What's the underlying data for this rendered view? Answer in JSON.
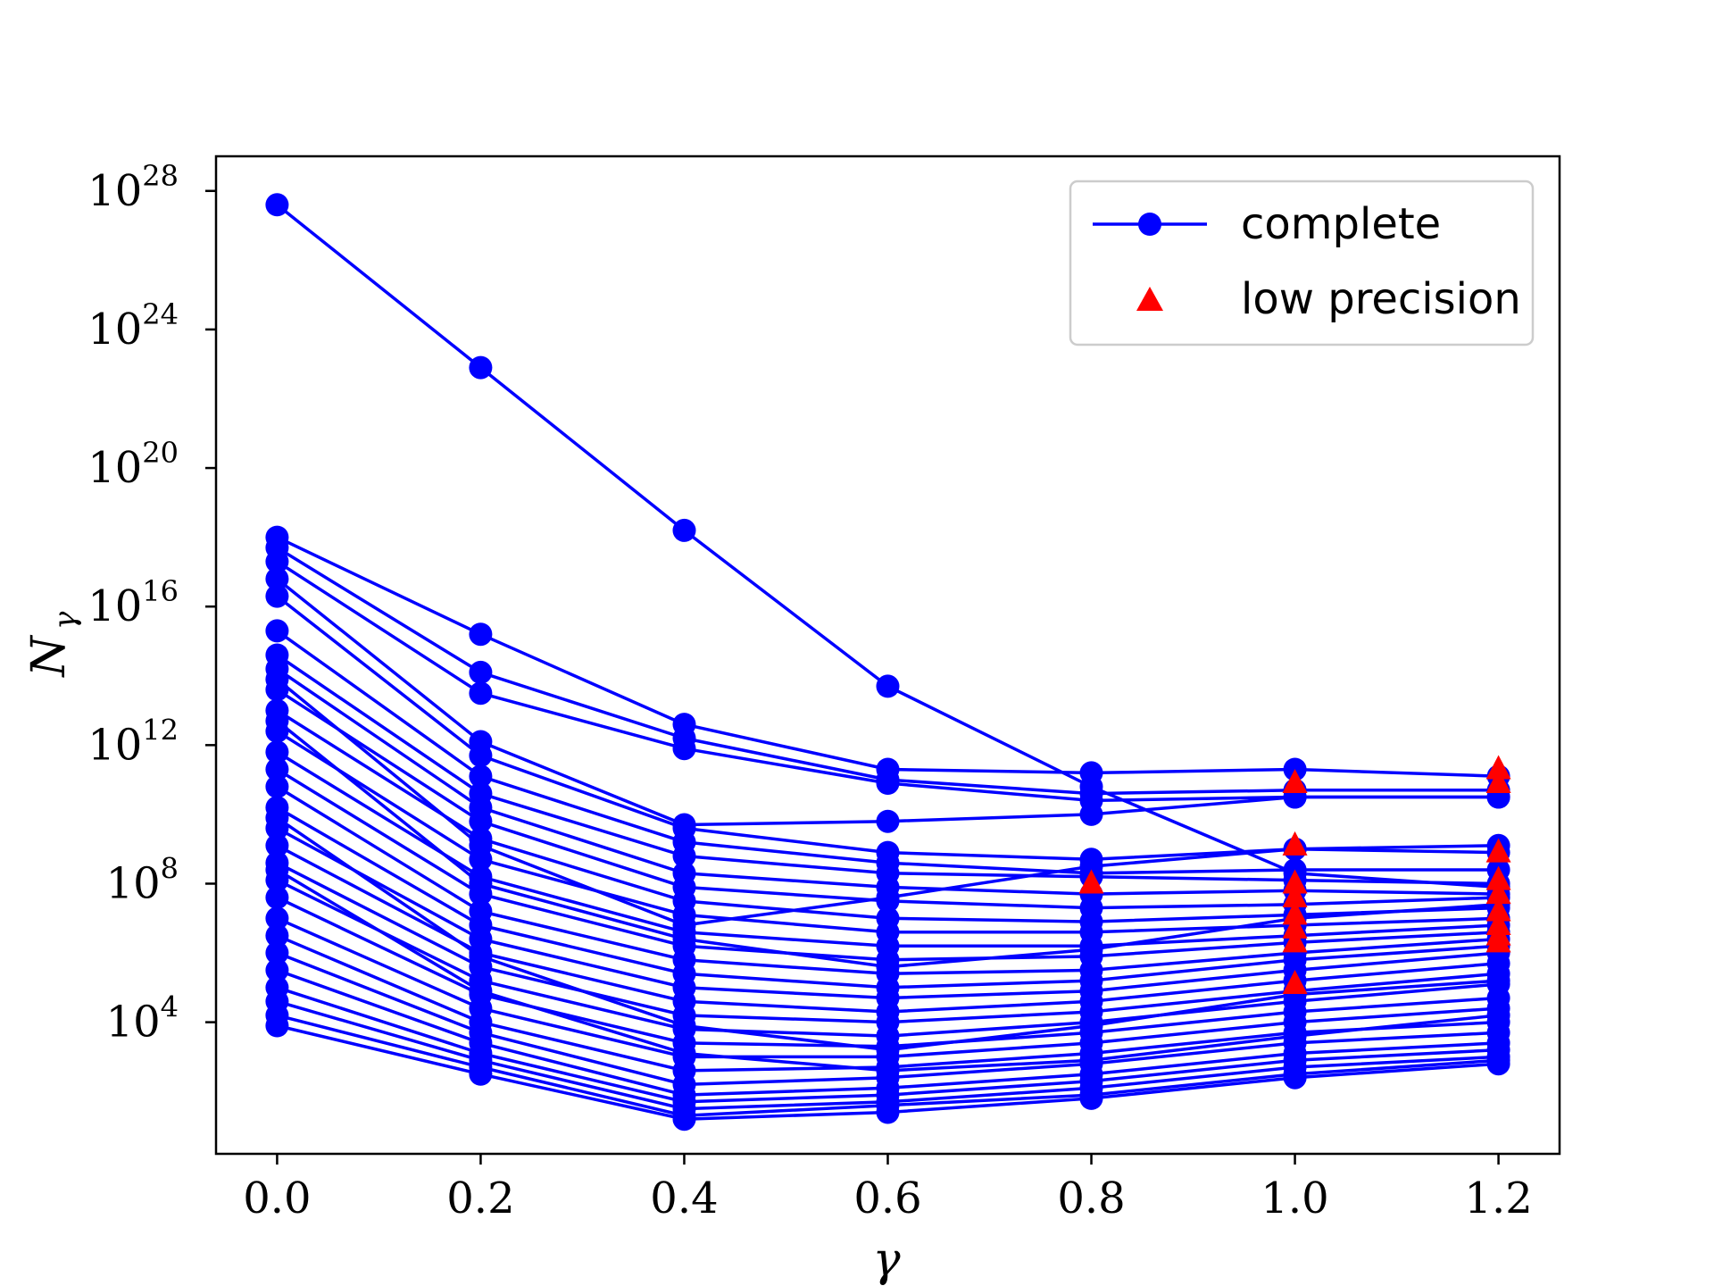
{
  "chart_data": {
    "type": "line",
    "title": "",
    "xlabel": "γ",
    "ylabel": "N_γ",
    "ylabel_main": "N",
    "ylabel_sub": "γ",
    "x": [
      0.0,
      0.2,
      0.4,
      0.6,
      0.8,
      1.0,
      1.2
    ],
    "x_tick_labels": [
      "0.0",
      "0.2",
      "0.4",
      "0.6",
      "0.8",
      "1.0",
      "1.2"
    ],
    "xlim": [
      -0.06,
      1.26
    ],
    "y_scale": "log",
    "ylim_log10": [
      0.2,
      29.0
    ],
    "y_ticks": [
      {
        "base": "10",
        "exp": "4",
        "log10": 4
      },
      {
        "base": "10",
        "exp": "8",
        "log10": 8
      },
      {
        "base": "10",
        "exp": "12",
        "log10": 12
      },
      {
        "base": "10",
        "exp": "16",
        "log10": 16
      },
      {
        "base": "10",
        "exp": "20",
        "log10": 20
      },
      {
        "base": "10",
        "exp": "24",
        "log10": 24
      },
      {
        "base": "10",
        "exp": "28",
        "log10": 28
      }
    ],
    "grid": false,
    "legend_position": "top-right",
    "legend": [
      {
        "label": "complete",
        "marker": "circle-line",
        "color": "#0000ff"
      },
      {
        "label": "low precision",
        "marker": "triangle",
        "color": "#ff0000"
      }
    ],
    "series_color": "#0000ff",
    "low_precision_color": "#ff0000",
    "series_log10": [
      [
        27.6,
        22.9,
        18.2,
        13.7,
        10.8,
        8.3,
        7.9
      ],
      [
        18.0,
        15.2,
        12.6,
        11.3,
        11.2,
        11.3,
        11.1
      ],
      [
        17.7,
        14.1,
        12.2,
        11.0,
        10.6,
        10.7,
        10.7
      ],
      [
        17.3,
        13.5,
        11.9,
        10.9,
        10.4,
        10.5,
        10.5
      ],
      [
        16.8,
        12.1,
        9.7,
        9.8,
        10.0,
        10.5,
        10.5
      ],
      [
        16.3,
        11.7,
        9.6,
        8.9,
        8.7,
        9.0,
        9.1
      ],
      [
        15.3,
        11.1,
        9.2,
        8.6,
        8.3,
        8.4,
        8.4
      ],
      [
        14.6,
        10.6,
        8.8,
        8.3,
        8.2,
        8.1,
        8.0
      ],
      [
        14.2,
        10.2,
        8.3,
        7.9,
        7.7,
        7.8,
        7.7
      ],
      [
        13.6,
        9.8,
        7.9,
        7.5,
        7.3,
        7.4,
        7.6
      ],
      [
        13.0,
        9.3,
        7.5,
        7.0,
        6.9,
        7.1,
        7.3
      ],
      [
        12.4,
        8.7,
        7.1,
        6.6,
        6.6,
        6.8,
        7.0
      ],
      [
        11.8,
        8.2,
        6.6,
        6.2,
        6.2,
        6.5,
        6.8
      ],
      [
        11.3,
        7.7,
        6.2,
        5.8,
        5.9,
        6.3,
        6.6
      ],
      [
        10.8,
        7.2,
        5.8,
        5.4,
        5.5,
        6.0,
        6.4
      ],
      [
        10.2,
        6.8,
        5.4,
        5.0,
        5.2,
        5.8,
        6.2
      ],
      [
        9.6,
        6.4,
        5.0,
        4.7,
        4.9,
        5.5,
        6.0
      ],
      [
        9.1,
        6.0,
        4.6,
        4.3,
        4.6,
        5.2,
        5.7
      ],
      [
        8.6,
        5.6,
        4.2,
        4.0,
        4.3,
        4.9,
        5.4
      ],
      [
        8.1,
        5.2,
        3.8,
        3.6,
        4.0,
        4.6,
        5.1
      ],
      [
        7.6,
        4.8,
        3.4,
        3.3,
        3.7,
        4.3,
        4.7
      ],
      [
        7.0,
        4.4,
        3.0,
        3.0,
        3.4,
        4.0,
        4.4
      ],
      [
        6.5,
        4.0,
        2.6,
        2.7,
        3.1,
        3.7,
        4.0
      ],
      [
        6.0,
        3.7,
        2.2,
        2.4,
        2.8,
        3.4,
        3.7
      ],
      [
        5.5,
        3.4,
        1.9,
        2.1,
        2.5,
        3.1,
        3.4
      ],
      [
        5.0,
        3.1,
        1.7,
        1.9,
        2.3,
        2.9,
        3.2
      ],
      [
        4.6,
        2.9,
        1.5,
        1.7,
        2.1,
        2.7,
        3.0
      ],
      [
        4.2,
        2.7,
        1.3,
        1.6,
        1.9,
        2.5,
        2.9
      ],
      [
        3.9,
        2.5,
        1.2,
        1.4,
        1.8,
        2.4,
        2.8
      ],
      [
        13.9,
        9.1,
        6.8,
        7.6,
        8.5,
        9.0,
        8.9
      ],
      [
        12.7,
        8.0,
        6.4,
        5.6,
        6.1,
        7.0,
        7.4
      ],
      [
        9.9,
        5.9,
        3.9,
        3.2,
        3.9,
        4.8,
        5.2
      ],
      [
        8.4,
        4.9,
        3.1,
        2.6,
        2.9,
        3.6,
        4.2
      ]
    ],
    "low_precision_points": [
      {
        "x": 0.8,
        "y_log10": 8.0
      },
      {
        "x": 1.0,
        "y_log10": 10.9
      },
      {
        "x": 1.0,
        "y_log10": 9.1
      },
      {
        "x": 1.0,
        "y_log10": 8.0
      },
      {
        "x": 1.0,
        "y_log10": 7.6
      },
      {
        "x": 1.0,
        "y_log10": 7.1
      },
      {
        "x": 1.0,
        "y_log10": 6.7
      },
      {
        "x": 1.0,
        "y_log10": 6.3
      },
      {
        "x": 1.0,
        "y_log10": 5.1
      },
      {
        "x": 1.2,
        "y_log10": 11.3
      },
      {
        "x": 1.2,
        "y_log10": 10.9
      },
      {
        "x": 1.2,
        "y_log10": 8.9
      },
      {
        "x": 1.2,
        "y_log10": 8.1
      },
      {
        "x": 1.2,
        "y_log10": 7.7
      },
      {
        "x": 1.2,
        "y_log10": 7.2
      },
      {
        "x": 1.2,
        "y_log10": 6.8
      },
      {
        "x": 1.2,
        "y_log10": 6.5
      },
      {
        "x": 1.2,
        "y_log10": 6.3
      }
    ]
  }
}
